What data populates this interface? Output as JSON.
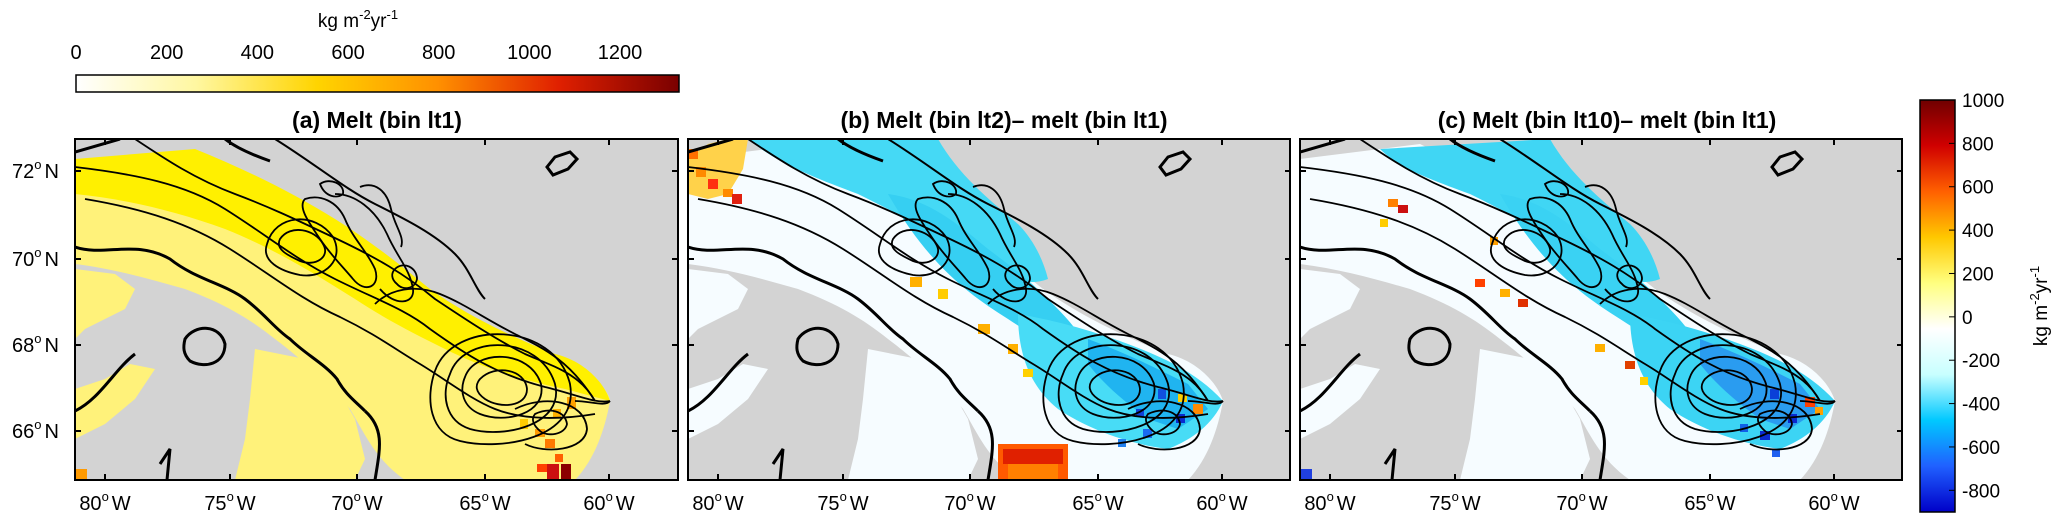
{
  "top_colorbar": {
    "unit": "kg m",
    "unit_sup1": "-2",
    "unit_mid": "yr",
    "unit_sup2": "-1",
    "ticks": [
      "0",
      "200",
      "400",
      "600",
      "800",
      "1000",
      "1200"
    ],
    "tick_values": [
      0,
      200,
      400,
      600,
      800,
      1000,
      1200
    ],
    "range": [
      0,
      1330
    ],
    "colors": [
      "#ffffff",
      "#fff7a0",
      "#ffd400",
      "#ff9000",
      "#e02000",
      "#7a0000"
    ]
  },
  "side_colorbar": {
    "unit": "kg m",
    "unit_sup1": "-2",
    "unit_mid": "yr",
    "unit_sup2": "-1",
    "ticks": [
      "1000",
      "800",
      "600",
      "400",
      "200",
      "0",
      "-200",
      "-400",
      "-600",
      "-800"
    ],
    "tick_values": [
      1000,
      800,
      600,
      400,
      200,
      0,
      -200,
      -400,
      -600,
      -800
    ],
    "range": [
      -900,
      1000
    ],
    "colors": [
      "#0000c8",
      "#2060ff",
      "#00c8ff",
      "#c8ffff",
      "#ffffff",
      "#ffff80",
      "#ffc800",
      "#ff6000",
      "#d00000",
      "#700000"
    ]
  },
  "panels": [
    {
      "id": "a",
      "title": "(a) Melt (bin lt1)"
    },
    {
      "id": "b",
      "title": "(b) Melt (bin lt2)–  melt (bin lt1)"
    },
    {
      "id": "c",
      "title": "(c) Melt (bin lt10)–  melt (bin lt1)"
    }
  ],
  "axes": {
    "lat_labels": [
      {
        "deg": "72",
        "hemi": "N"
      },
      {
        "deg": "70",
        "hemi": "N"
      },
      {
        "deg": "68",
        "hemi": "N"
      },
      {
        "deg": "66",
        "hemi": "N"
      }
    ],
    "lon_labels": [
      {
        "deg": "80",
        "hemi": "W"
      },
      {
        "deg": "75",
        "hemi": "W"
      },
      {
        "deg": "70",
        "hemi": "W"
      },
      {
        "deg": "65",
        "hemi": "W"
      },
      {
        "deg": "60",
        "hemi": "W"
      }
    ],
    "deg_symbol": "o"
  },
  "colors": {
    "land": "#d3d3d3",
    "frame": "#000000",
    "melt": "#fff200",
    "negative": "#3fd7f5"
  }
}
